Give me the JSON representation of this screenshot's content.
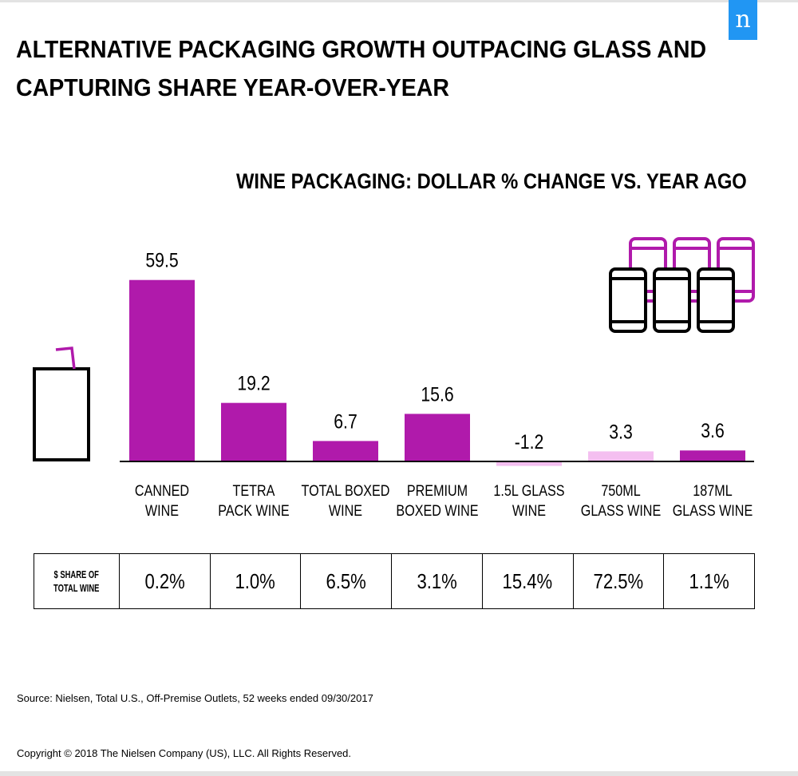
{
  "header": {
    "title_line1": "ALTERNATIVE PACKAGING GROWTH OUTPACING GLASS AND",
    "title_line2": "CAPTURING SHARE YEAR-OVER-YEAR",
    "logo_letter": "n"
  },
  "chart_data": {
    "type": "bar",
    "title": "WINE PACKAGING: DOLLAR % CHANGE VS. YEAR AGO",
    "categories": [
      "CANNED WINE",
      "TETRA PACK WINE",
      "TOTAL BOXED WINE",
      "PREMIUM BOXED WINE",
      "1.5L GLASS WINE",
      "750ML GLASS WINE",
      "187ML GLASS WINE"
    ],
    "category_lines": [
      [
        "CANNED",
        "WINE"
      ],
      [
        "TETRA",
        "PACK WINE"
      ],
      [
        "TOTAL BOXED",
        "WINE"
      ],
      [
        "PREMIUM",
        "BOXED WINE"
      ],
      [
        "1.5L GLASS",
        "WINE"
      ],
      [
        "750ML",
        "GLASS WINE"
      ],
      [
        "187ML",
        "GLASS WINE"
      ]
    ],
    "values": [
      59.5,
      19.2,
      6.7,
      15.6,
      -1.2,
      3.3,
      3.6
    ],
    "value_labels": [
      "59.5",
      "19.2",
      "6.7",
      "15.6",
      "-1.2",
      "3.3",
      "3.6"
    ],
    "bar_colors": [
      "#b01aab",
      "#b01aab",
      "#b01aab",
      "#b01aab",
      "#f4bff0",
      "#f4bff0",
      "#b01aab"
    ],
    "xlabel": "",
    "ylabel": "",
    "grid": false
  },
  "share_table": {
    "header_line1": "$ SHARE OF",
    "header_line2": "TOTAL WINE",
    "values": [
      "0.2%",
      "1.0%",
      "6.5%",
      "3.1%",
      "15.4%",
      "72.5%",
      "1.1%"
    ]
  },
  "footer": {
    "source": "Source: Nielsen, Total U.S., Off-Premise Outlets, 52 weeks ended 09/30/2017",
    "copyright": "Copyright © 2018 The Nielsen Company (US), LLC. All Rights Reserved."
  },
  "colors": {
    "accent_purple": "#b01aab",
    "light_pink": "#f4bff0",
    "logo_blue": "#2196f3"
  },
  "icons": [
    "wine-carton-icon",
    "wine-cans-icon"
  ]
}
